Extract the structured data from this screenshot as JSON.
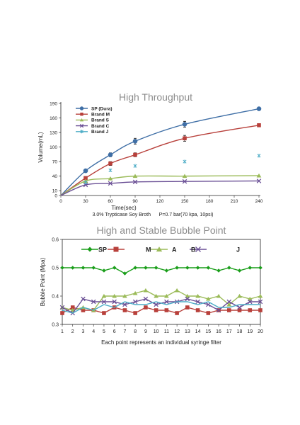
{
  "chart_data": [
    {
      "type": "line",
      "title": "High Throughput",
      "xlabel": "Time(sec)",
      "ylabel": "Volume(mL)",
      "note": "3.0% Trypticase Soy Broth      P=0.7 bar(70 kpa, 10psi)",
      "x": [
        0,
        30,
        60,
        90,
        150,
        240
      ],
      "xticks": [
        0,
        30,
        60,
        90,
        120,
        150,
        180,
        210,
        240
      ],
      "yticks": [
        0,
        10,
        40,
        70,
        100,
        130,
        160,
        190
      ],
      "xlim": [
        0,
        240
      ],
      "ylim": [
        0,
        190
      ],
      "grid": false,
      "legend_position": "top-left",
      "series": [
        {
          "name": "SP (Dura)",
          "color": "#3f6fa6",
          "marker": "circle",
          "values": [
            0,
            51,
            84,
            112,
            147,
            179
          ],
          "err": [
            0,
            0,
            4,
            6,
            6,
            0
          ]
        },
        {
          "name": "Brand M",
          "color": "#b8403b",
          "marker": "square",
          "values": [
            0,
            36,
            66,
            84,
            118,
            145
          ],
          "err": [
            0,
            0,
            4,
            4,
            6,
            0
          ]
        },
        {
          "name": "Brand S",
          "color": "#9bbb59",
          "marker": "triangle",
          "values": [
            0,
            30,
            35,
            40,
            40,
            41
          ],
          "err": [
            0,
            0,
            0,
            0,
            0,
            0
          ]
        },
        {
          "name": "Brand C",
          "color": "#6a4f95",
          "marker": "x",
          "values": [
            0,
            22,
            25,
            28,
            29,
            30
          ],
          "err": [
            0,
            0,
            0,
            0,
            0,
            0
          ]
        },
        {
          "name": "Brand J",
          "color": "#4bacc6",
          "marker": "star",
          "values": [
            null,
            27,
            52,
            61,
            70,
            82
          ],
          "err": [
            0,
            0,
            0,
            0,
            0,
            0
          ]
        }
      ]
    },
    {
      "type": "line",
      "title": "High and Stable Bubble Point",
      "xlabel": "Each point represents an individual syringe filter",
      "ylabel": "Bubble Point (Mpa)",
      "x": [
        1,
        2,
        3,
        4,
        5,
        6,
        7,
        8,
        9,
        10,
        11,
        12,
        13,
        14,
        15,
        16,
        17,
        18,
        19,
        20
      ],
      "xlim": [
        1,
        20
      ],
      "ylim": [
        0.3,
        0.6
      ],
      "yticks": [
        0.3,
        0.4,
        0.5,
        0.6
      ],
      "grid": false,
      "legend_position": "top",
      "series": [
        {
          "name": "SP",
          "color": "#1a9e1a",
          "marker": "diamond",
          "values": [
            0.5,
            0.5,
            0.5,
            0.5,
            0.49,
            0.5,
            0.48,
            0.5,
            0.5,
            0.5,
            0.49,
            0.5,
            0.5,
            0.5,
            0.5,
            0.49,
            0.5,
            0.49,
            0.5,
            0.5
          ]
        },
        {
          "name": "M",
          "color": "#b8403b",
          "marker": "square",
          "values": [
            0.34,
            0.36,
            0.35,
            0.35,
            0.34,
            0.36,
            0.35,
            0.34,
            0.36,
            0.35,
            0.35,
            0.34,
            0.36,
            0.35,
            0.34,
            0.35,
            0.35,
            0.35,
            0.35,
            0.35
          ]
        },
        {
          "name": "A",
          "color": "#9bbb59",
          "marker": "triangle",
          "values": [
            0.36,
            0.35,
            0.36,
            0.35,
            0.4,
            0.4,
            0.4,
            0.41,
            0.42,
            0.4,
            0.4,
            0.42,
            0.4,
            0.4,
            0.39,
            0.4,
            0.37,
            0.4,
            0.39,
            0.4
          ]
        },
        {
          "name": "B",
          "color": "#6a4f95",
          "marker": "x",
          "values": [
            0.36,
            0.34,
            0.39,
            0.38,
            0.38,
            0.38,
            0.37,
            0.38,
            0.39,
            0.37,
            0.38,
            0.38,
            0.39,
            0.38,
            0.37,
            0.35,
            0.38,
            0.36,
            0.38,
            0.38
          ]
        },
        {
          "name": "J",
          "color": "#4bacc6",
          "marker": "line",
          "values": [
            0.35,
            0.34,
            0.36,
            0.35,
            0.37,
            0.36,
            0.38,
            0.37,
            0.37,
            0.38,
            0.37,
            0.38,
            0.38,
            0.37,
            0.38,
            0.36,
            0.36,
            0.37,
            0.37,
            0.37
          ]
        }
      ]
    }
  ]
}
